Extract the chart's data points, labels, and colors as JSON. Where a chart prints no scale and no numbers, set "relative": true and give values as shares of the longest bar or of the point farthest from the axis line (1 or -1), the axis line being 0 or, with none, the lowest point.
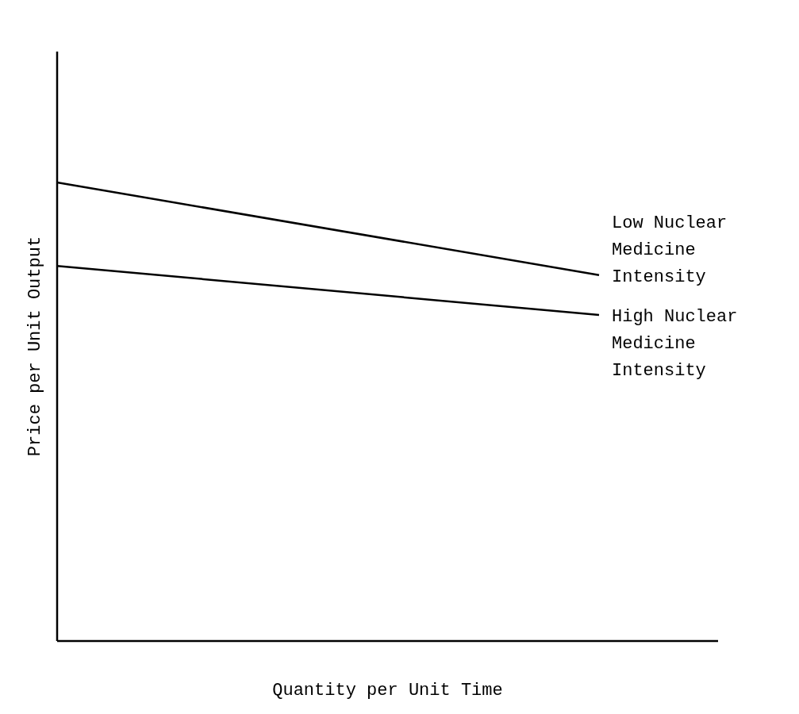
{
  "chart_data": {
    "type": "line",
    "relative": true,
    "xlabel": "Quantity per Unit Time",
    "ylabel": "Price per Unit Output",
    "categories": [
      null,
      null
    ],
    "series": [
      {
        "name": "Low Nuclear Medicine Intensity",
        "color": "#000000",
        "values": [
          1,
          0.798
        ]
      },
      {
        "name": "High Nuclear Medicine Intensity",
        "color": "#000000",
        "values": [
          0.818,
          0.711
        ]
      }
    ],
    "grid": false,
    "legend": false,
    "marker": "none",
    "line_style": "solid"
  }
}
